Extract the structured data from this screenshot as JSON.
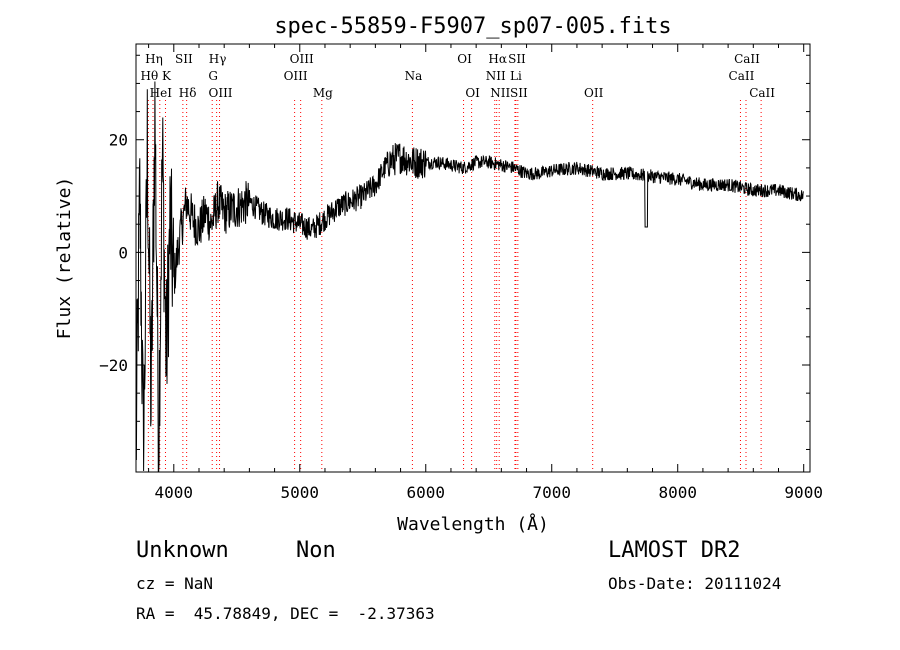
{
  "chart_data": {
    "type": "line",
    "title": "spec-55859-F5907_sp07-005.fits",
    "xlabel": "Wavelength (Å)",
    "ylabel": "Flux (relative)",
    "xlim": [
      3700,
      9050
    ],
    "ylim": [
      -39,
      37
    ],
    "xticks": [
      4000,
      5000,
      6000,
      7000,
      8000,
      9000
    ],
    "yticks": [
      -20,
      0,
      20
    ],
    "grid": false,
    "line_color": "#000000",
    "marker_color": "#ff0000",
    "spectrum_anchors": [
      [
        3700,
        -36
      ],
      [
        3730,
        10
      ],
      [
        3760,
        -38
      ],
      [
        3790,
        20
      ],
      [
        3820,
        -28
      ],
      [
        3850,
        25
      ],
      [
        3880,
        -32
      ],
      [
        3910,
        18
      ],
      [
        3940,
        -20
      ],
      [
        3970,
        5
      ],
      [
        4000,
        -5
      ],
      [
        4050,
        3
      ],
      [
        4100,
        9
      ],
      [
        4150,
        6
      ],
      [
        4200,
        4
      ],
      [
        4250,
        7
      ],
      [
        4300,
        5
      ],
      [
        4350,
        9
      ],
      [
        4400,
        7
      ],
      [
        4500,
        8
      ],
      [
        4600,
        9
      ],
      [
        4700,
        7
      ],
      [
        4800,
        6
      ],
      [
        4900,
        6
      ],
      [
        5000,
        5
      ],
      [
        5100,
        4
      ],
      [
        5200,
        6
      ],
      [
        5300,
        8
      ],
      [
        5400,
        9
      ],
      [
        5500,
        10
      ],
      [
        5600,
        12
      ],
      [
        5700,
        16
      ],
      [
        5800,
        17
      ],
      [
        5900,
        16
      ],
      [
        6000,
        16
      ],
      [
        6100,
        16
      ],
      [
        6200,
        15.5
      ],
      [
        6300,
        15
      ],
      [
        6400,
        16
      ],
      [
        6500,
        16
      ],
      [
        6600,
        15.5
      ],
      [
        6700,
        15
      ],
      [
        6800,
        14
      ],
      [
        6900,
        14
      ],
      [
        7000,
        14.5
      ],
      [
        7200,
        15
      ],
      [
        7400,
        14
      ],
      [
        7600,
        14
      ],
      [
        7800,
        13.5
      ],
      [
        8000,
        13
      ],
      [
        8200,
        12
      ],
      [
        8400,
        12
      ],
      [
        8600,
        11
      ],
      [
        8800,
        11
      ],
      [
        9000,
        10
      ]
    ],
    "spectral_lines": [
      {
        "label": "Hη",
        "x": 3835,
        "row": 0
      },
      {
        "label": "Hθ",
        "x": 3798,
        "row": 1
      },
      {
        "label": "K",
        "x": 3934,
        "row": 1
      },
      {
        "label": "HeI",
        "x": 3889,
        "row": 2
      },
      {
        "label": "SII",
        "x": 4072,
        "row": 0
      },
      {
        "label": "Hδ",
        "x": 4102,
        "row": 2
      },
      {
        "label": "Hγ",
        "x": 4340,
        "row": 0
      },
      {
        "label": "G",
        "x": 4305,
        "row": 1
      },
      {
        "label": "OIII",
        "x": 4363,
        "row": 2
      },
      {
        "label": "OIII",
        "x": 5007,
        "row": 0
      },
      {
        "label": "OIII",
        "x": 4959,
        "row": 1
      },
      {
        "label": "Mg",
        "x": 5175,
        "row": 2
      },
      {
        "label": "Na",
        "x": 5894,
        "row": 1
      },
      {
        "label": "OI",
        "x": 6300,
        "row": 0
      },
      {
        "label": "OI",
        "x": 6364,
        "row": 2
      },
      {
        "label": "Hα",
        "x": 6563,
        "row": 0
      },
      {
        "label": "SII",
        "x": 6716,
        "row": 0
      },
      {
        "label": "NII",
        "x": 6548,
        "row": 1
      },
      {
        "label": "Li",
        "x": 6708,
        "row": 1
      },
      {
        "label": "NII",
        "x": 6583,
        "row": 2
      },
      {
        "label": "SII",
        "x": 6731,
        "row": 2
      },
      {
        "label": "OII",
        "x": 7325,
        "row": 2
      },
      {
        "label": "CaII",
        "x": 8542,
        "row": 0
      },
      {
        "label": "CaII",
        "x": 8498,
        "row": 1
      },
      {
        "label": "CaII",
        "x": 8662,
        "row": 2
      }
    ]
  },
  "info": {
    "object_class": "Unknown",
    "object_subclass": "Non",
    "cz": "cz = NaN",
    "radec": "RA =  45.78849, DEC =  -2.37363",
    "survey": "LAMOST DR2",
    "obs_date": "Obs-Date: 20111024"
  }
}
